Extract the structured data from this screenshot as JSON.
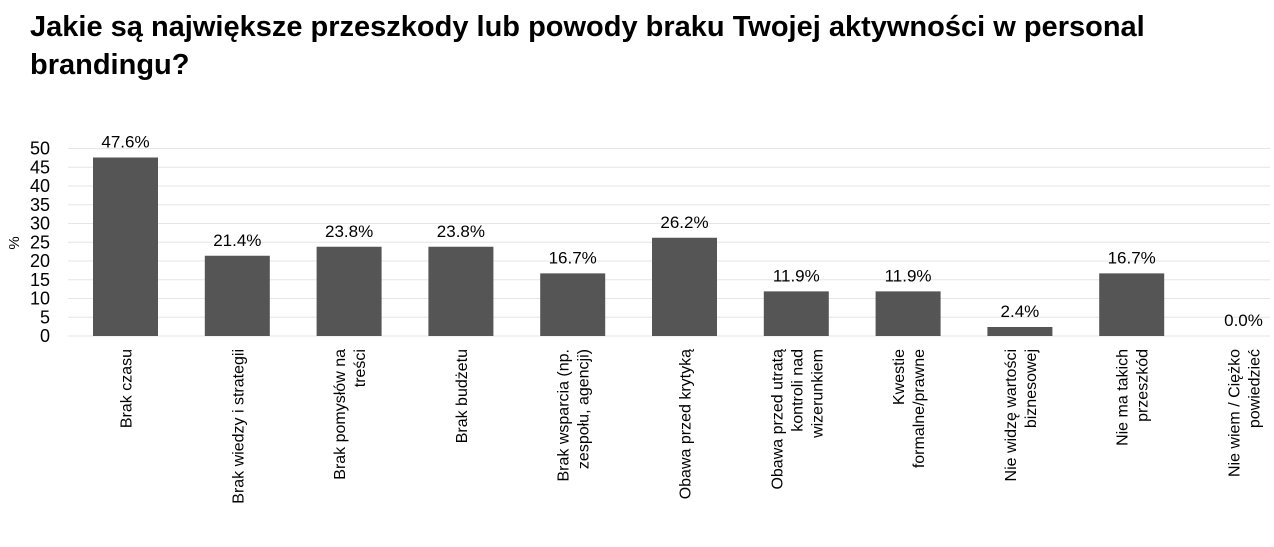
{
  "chart_data": {
    "type": "bar",
    "title": "Jakie są największe przeszkody lub powody braku Twojej aktywności w personal brandingu?",
    "xlabel": "",
    "ylabel": "%",
    "ylim": [
      0,
      50
    ],
    "yticks": [
      0,
      5,
      10,
      15,
      20,
      25,
      30,
      35,
      40,
      45,
      50
    ],
    "grid": true,
    "bar_color": "#555555",
    "categories": [
      [
        "Brak czasu"
      ],
      [
        "Brak wiedzy i strategii"
      ],
      [
        "Brak pomysłów na",
        "treści"
      ],
      [
        "Brak budżetu"
      ],
      [
        "Brak wsparcia (np.",
        "zespołu, agencji)"
      ],
      [
        "Obawa przed krytyką"
      ],
      [
        "Obawa przed utratą",
        "kontroli nad",
        "wizerunkiem"
      ],
      [
        "Kwestie",
        "formalne/prawne"
      ],
      [
        "Nie widzę wartości",
        "biznesowej"
      ],
      [
        "Nie ma takich",
        "przeszkód"
      ],
      [
        "Nie wiem / Ciężko",
        "powiedzieć"
      ]
    ],
    "values": [
      47.6,
      21.4,
      23.8,
      23.8,
      16.7,
      26.2,
      11.9,
      11.9,
      2.4,
      16.7,
      0.0
    ],
    "data_labels": [
      "47.6%",
      "21.4%",
      "23.8%",
      "23.8%",
      "16.7%",
      "26.2%",
      "11.9%",
      "11.9%",
      "2.4%",
      "16.7%",
      "0.0%"
    ]
  }
}
